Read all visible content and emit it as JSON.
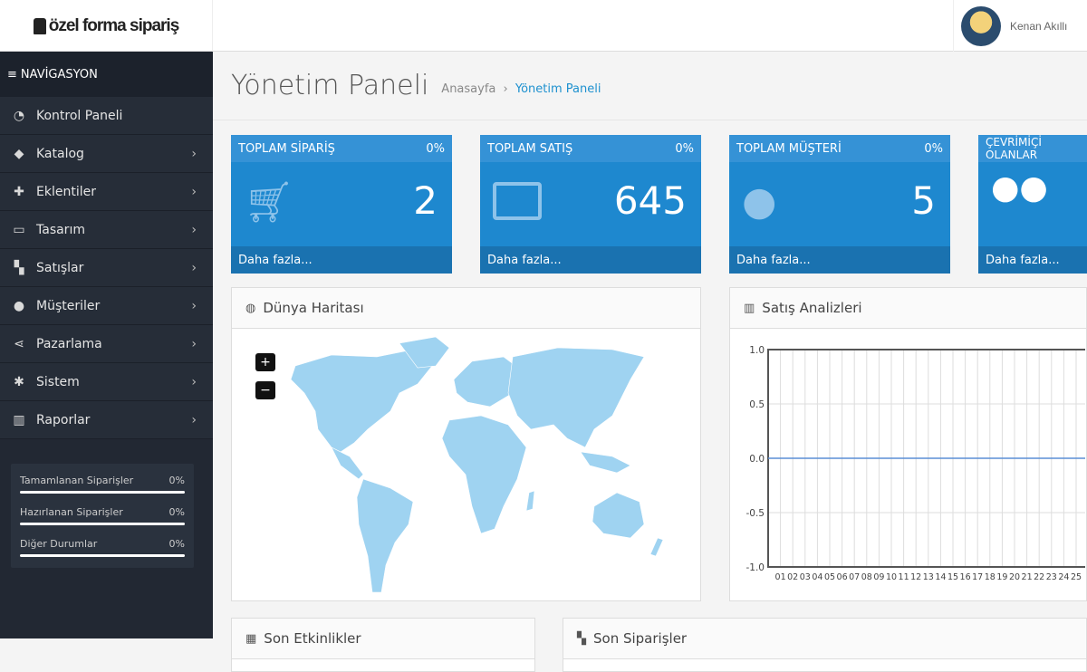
{
  "header": {
    "logo_text": "özel forma sipariş",
    "user_name": "Kenan Akıllı"
  },
  "sidebar": {
    "title": "NAVİGASYON",
    "items": [
      {
        "label": "Kontrol Paneli",
        "icon": "dashboard-icon",
        "glyph": "◔",
        "chevron": false
      },
      {
        "label": "Katalog",
        "icon": "tags-icon",
        "glyph": "◆",
        "chevron": true
      },
      {
        "label": "Eklentiler",
        "icon": "puzzle-icon",
        "glyph": "✚",
        "chevron": true
      },
      {
        "label": "Tasarım",
        "icon": "desktop-icon",
        "glyph": "▭",
        "chevron": true
      },
      {
        "label": "Satışlar",
        "icon": "cart-icon",
        "glyph": "▚",
        "chevron": true
      },
      {
        "label": "Müşteriler",
        "icon": "user-icon",
        "glyph": "●",
        "chevron": true
      },
      {
        "label": "Pazarlama",
        "icon": "share-icon",
        "glyph": "⋖",
        "chevron": true
      },
      {
        "label": "Sistem",
        "icon": "gear-icon",
        "glyph": "✱",
        "chevron": true
      },
      {
        "label": "Raporlar",
        "icon": "bar-chart-icon",
        "glyph": "▥",
        "chevron": true
      }
    ],
    "stats": [
      {
        "label": "Tamamlanan Siparişler",
        "value": "0%",
        "progress": 0
      },
      {
        "label": "Hazırlanan Siparişler",
        "value": "0%",
        "progress": 0
      },
      {
        "label": "Diğer Durumlar",
        "value": "0%",
        "progress": 0
      }
    ]
  },
  "page": {
    "title": "Yönetim Paneli",
    "breadcrumb": [
      "Anasayfa",
      "Yönetim Paneli"
    ]
  },
  "tiles": [
    {
      "title": "TOPLAM SİPARİŞ",
      "pct": "0%",
      "value": "2",
      "more": "Daha fazla...",
      "icon": "shopping-cart-icon"
    },
    {
      "title": "TOPLAM SATIŞ",
      "pct": "0%",
      "value": "645",
      "more": "Daha fazla...",
      "icon": "credit-card-icon"
    },
    {
      "title": "TOPLAM MÜŞTERİ",
      "pct": "0%",
      "value": "5",
      "more": "Daha fazla...",
      "icon": "user-icon"
    },
    {
      "title": "ÇEVRİMİÇİ OLANLAR",
      "pct": "",
      "value": "",
      "more": "Daha fazla...",
      "icon": "users-icon"
    }
  ],
  "panels": {
    "map": {
      "title": "Dünya Haritası",
      "zoom_in": "+",
      "zoom_out": "−",
      "land_color": "#9fd3f1"
    },
    "sales": {
      "title": "Satış Analizleri"
    },
    "activity": {
      "title": "Son Etkinlikler"
    },
    "orders": {
      "title": "Son Siparişler"
    }
  },
  "chart_data": {
    "type": "line",
    "title": "Satış Analizleri",
    "ylim": [
      -1,
      1
    ],
    "yticks": [
      "1.0",
      "0.5",
      "0.0",
      "-0.5",
      "-1.0"
    ],
    "ytick_values": [
      1,
      0.5,
      0,
      -0.5,
      -1
    ],
    "categories": [
      "01",
      "02",
      "03",
      "04",
      "05",
      "06",
      "07",
      "08",
      "09",
      "10",
      "11",
      "12",
      "13",
      "14",
      "15",
      "16",
      "17",
      "18",
      "19",
      "20",
      "21",
      "22",
      "23",
      "24",
      "25"
    ],
    "series": [
      {
        "values": [
          0,
          0,
          0,
          0,
          0,
          0,
          0,
          0,
          0,
          0,
          0,
          0,
          0,
          0,
          0,
          0,
          0,
          0,
          0,
          0,
          0,
          0,
          0,
          0,
          0
        ],
        "color": "#5b8fd6"
      }
    ],
    "grid": true
  }
}
